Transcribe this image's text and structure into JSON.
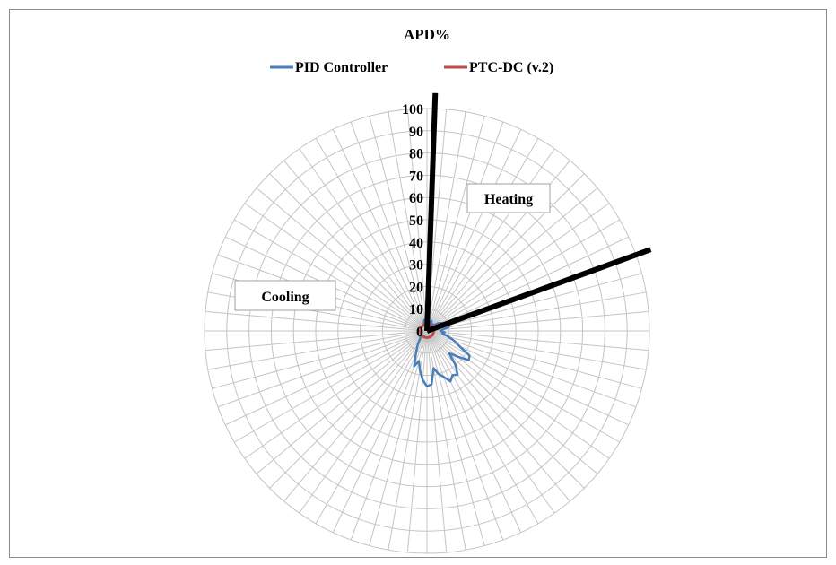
{
  "chart_data": {
    "type": "radar",
    "title": "APD%",
    "legend_position": "top",
    "r_ticks": [
      0,
      10,
      20,
      30,
      40,
      50,
      60,
      70,
      80,
      90,
      100
    ],
    "r_range": [
      0,
      100
    ],
    "angular_categories": 72,
    "grid": true,
    "series": [
      {
        "name": "PID Controller",
        "color": "#4a7ebb",
        "values": [
          8,
          4,
          5,
          3,
          4,
          5,
          4,
          3,
          4,
          3,
          4,
          6,
          7,
          8,
          5,
          9,
          10,
          7,
          6,
          8,
          7,
          10,
          13,
          16,
          22,
          23,
          18,
          14,
          20,
          24,
          23,
          25,
          22,
          20,
          17,
          24,
          25,
          22,
          18,
          14,
          17,
          12,
          9,
          7,
          5,
          4,
          3,
          4,
          3,
          3,
          3,
          3,
          3,
          3,
          3,
          3,
          3,
          3,
          3,
          3,
          3,
          3,
          3,
          3,
          3,
          3,
          3,
          3,
          4,
          5,
          4,
          6
        ]
      },
      {
        "name": "PTC-DC (v.2)",
        "color": "#be4b48",
        "values": [
          3,
          3,
          3,
          3,
          3,
          3,
          3,
          3,
          3,
          3,
          3,
          3,
          3,
          3,
          3,
          3,
          3,
          3,
          3,
          3,
          3,
          3,
          3,
          3,
          3,
          3,
          3,
          3,
          3,
          3,
          3,
          3,
          3,
          3,
          3,
          3,
          3,
          3,
          3,
          3,
          3,
          3,
          3,
          3,
          3,
          3,
          3,
          3,
          3,
          3,
          3,
          3,
          3,
          3,
          3,
          3,
          3,
          3,
          3,
          3,
          3,
          3,
          3,
          3,
          3,
          3,
          3,
          3,
          3,
          3,
          3,
          3
        ]
      }
    ],
    "dividers": [
      {
        "angle_deg": 2,
        "value": 107
      },
      {
        "angle_deg": 70,
        "value": 107
      }
    ],
    "annotations": [
      {
        "text": "Heating"
      },
      {
        "text": "Cooling"
      }
    ]
  }
}
